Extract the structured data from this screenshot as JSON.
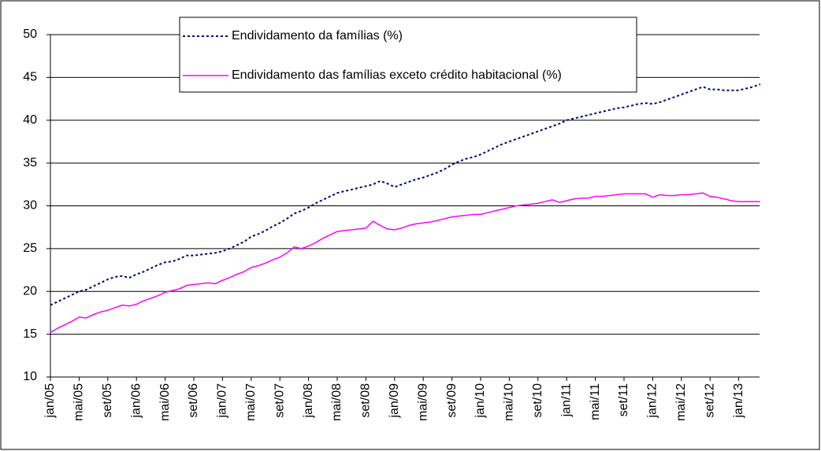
{
  "chart_data": {
    "type": "line",
    "categories": [
      "jan/05",
      null,
      null,
      null,
      "mai/05",
      null,
      null,
      null,
      "set/05",
      null,
      null,
      null,
      "jan/06",
      null,
      null,
      null,
      "mai/06",
      null,
      null,
      null,
      "set/06",
      null,
      null,
      null,
      "jan/07",
      null,
      null,
      null,
      "mai/07",
      null,
      null,
      null,
      "set/07",
      null,
      null,
      null,
      "jan/08",
      null,
      null,
      null,
      "mai/08",
      null,
      null,
      null,
      "set/08",
      null,
      null,
      null,
      "jan/09",
      null,
      null,
      null,
      "mai/09",
      null,
      null,
      null,
      "set/09",
      null,
      null,
      null,
      "jan/10",
      null,
      null,
      null,
      "mai/10",
      null,
      null,
      null,
      "set/10",
      null,
      null,
      null,
      "jan/11",
      null,
      null,
      null,
      "mai/11",
      null,
      null,
      null,
      "set/11",
      null,
      null,
      null,
      "jan/12",
      null,
      null,
      null,
      "mai/12",
      null,
      null,
      null,
      "set/12",
      null,
      null,
      null,
      "jan/13",
      null,
      null,
      null
    ],
    "series": [
      {
        "name": "Endividamento da famílias (%)",
        "color": "#000080",
        "line_style": "dotted",
        "values": [
          18.4,
          18.8,
          19.2,
          19.6,
          20.0,
          20.2,
          20.6,
          21.0,
          21.4,
          21.7,
          21.8,
          21.6,
          22.0,
          22.3,
          22.7,
          23.1,
          23.4,
          23.5,
          23.8,
          24.2,
          24.2,
          24.3,
          24.4,
          24.5,
          24.7,
          25.0,
          25.4,
          25.8,
          26.4,
          26.7,
          27.1,
          27.6,
          28.0,
          28.5,
          29.1,
          29.4,
          29.8,
          30.3,
          30.7,
          31.1,
          31.5,
          31.7,
          31.9,
          32.1,
          32.3,
          32.5,
          32.9,
          32.6,
          32.2,
          32.5,
          32.8,
          33.1,
          33.3,
          33.6,
          33.9,
          34.3,
          34.8,
          35.2,
          35.5,
          35.7,
          36.0,
          36.4,
          36.8,
          37.2,
          37.5,
          37.8,
          38.1,
          38.4,
          38.7,
          39.0,
          39.3,
          39.6,
          40.0,
          40.2,
          40.4,
          40.6,
          40.8,
          41.0,
          41.2,
          41.4,
          41.5,
          41.7,
          41.9,
          42.0,
          41.9,
          42.1,
          42.4,
          42.7,
          43.0,
          43.3,
          43.6,
          43.9,
          43.6,
          43.6,
          43.5,
          43.5,
          43.5,
          43.7,
          43.9,
          44.2
        ]
      },
      {
        "name": "Endividamento das famílias exceto crédito habitacional (%)",
        "color": "#ff00ff",
        "line_style": "solid",
        "values": [
          15.2,
          15.7,
          16.1,
          16.5,
          17.0,
          16.9,
          17.3,
          17.6,
          17.8,
          18.1,
          18.4,
          18.3,
          18.5,
          18.9,
          19.2,
          19.5,
          19.9,
          20.1,
          20.3,
          20.7,
          20.8,
          20.9,
          21.0,
          20.9,
          21.3,
          21.6,
          22.0,
          22.3,
          22.8,
          23.0,
          23.3,
          23.7,
          24.0,
          24.5,
          25.2,
          25.0,
          25.3,
          25.7,
          26.2,
          26.6,
          27.0,
          27.1,
          27.2,
          27.3,
          27.4,
          28.2,
          27.7,
          27.3,
          27.2,
          27.4,
          27.7,
          27.9,
          28.0,
          28.1,
          28.3,
          28.5,
          28.7,
          28.8,
          28.9,
          29.0,
          29.0,
          29.2,
          29.4,
          29.6,
          29.8,
          30.0,
          30.1,
          30.2,
          30.3,
          30.5,
          30.7,
          30.4,
          30.6,
          30.8,
          30.9,
          30.9,
          31.1,
          31.1,
          31.2,
          31.3,
          31.4,
          31.4,
          31.4,
          31.4,
          31.0,
          31.3,
          31.2,
          31.2,
          31.3,
          31.3,
          31.4,
          31.5,
          31.1,
          31.0,
          30.8,
          30.6,
          30.5,
          30.5,
          30.5,
          30.5
        ]
      }
    ],
    "ylim": [
      10,
      50
    ],
    "yticks": [
      10,
      15,
      20,
      25,
      30,
      35,
      40,
      45,
      50
    ],
    "grid": true
  }
}
